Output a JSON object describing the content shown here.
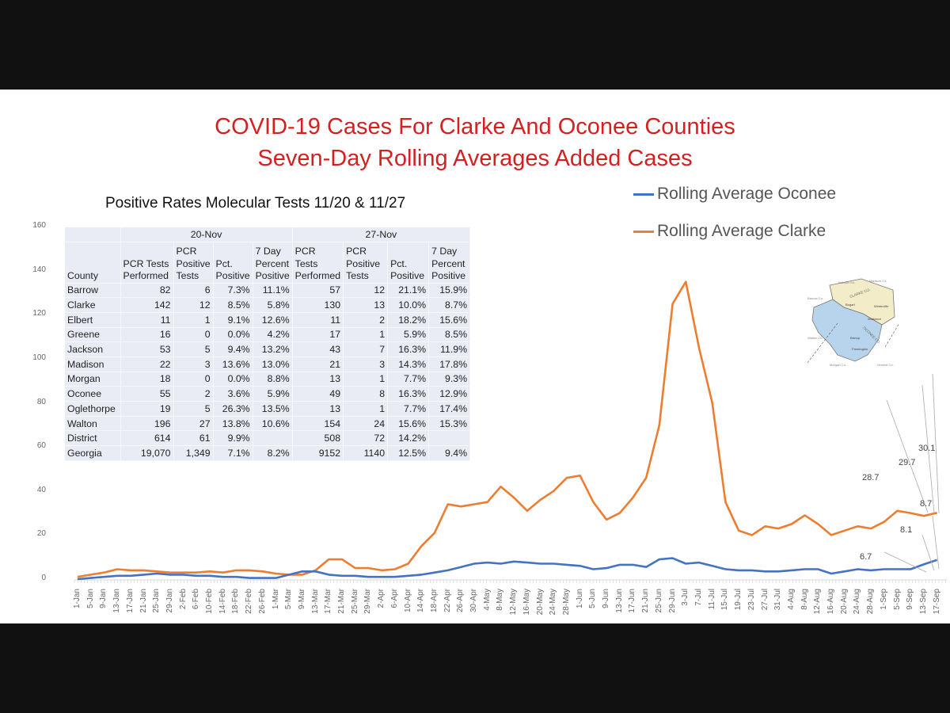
{
  "slide": {
    "title_line1": "COVID-19 Cases For Clarke And Oconee Counties",
    "title_line2": "Seven-Day Rolling Averages Added Cases",
    "table_title": "Positive Rates Molecular Tests 11/20 & 11/27"
  },
  "legend": [
    {
      "label": "Rolling Average Oconee",
      "color": "#4472c4"
    },
    {
      "label": "Rolling Average Clarke",
      "color": "#ed7d31"
    }
  ],
  "table": {
    "groups": [
      "20-Nov",
      "27-Nov"
    ],
    "headers": [
      "County",
      "PCR Tests Performed",
      "PCR Positive Tests",
      "Pct. Positive",
      "7 Day Percent Positive",
      "PCR Tests Performed",
      "PCR Positive Tests",
      "Pct. Positive",
      "7 Day Percent Positive"
    ],
    "rows": [
      [
        "Barrow",
        "82",
        "6",
        "7.3%",
        "11.1%",
        "57",
        "12",
        "21.1%",
        "15.9%"
      ],
      [
        "Clarke",
        "142",
        "12",
        "8.5%",
        "5.8%",
        "130",
        "13",
        "10.0%",
        "8.7%"
      ],
      [
        "Elbert",
        "11",
        "1",
        "9.1%",
        "12.6%",
        "11",
        "2",
        "18.2%",
        "15.6%"
      ],
      [
        "Greene",
        "16",
        "0",
        "0.0%",
        "4.2%",
        "17",
        "1",
        "5.9%",
        "8.5%"
      ],
      [
        "Jackson",
        "53",
        "5",
        "9.4%",
        "13.2%",
        "43",
        "7",
        "16.3%",
        "11.9%"
      ],
      [
        "Madison",
        "22",
        "3",
        "13.6%",
        "13.0%",
        "21",
        "3",
        "14.3%",
        "17.8%"
      ],
      [
        "Morgan",
        "18",
        "0",
        "0.0%",
        "8.8%",
        "13",
        "1",
        "7.7%",
        "9.3%"
      ],
      [
        "Oconee",
        "55",
        "2",
        "3.6%",
        "5.9%",
        "49",
        "8",
        "16.3%",
        "12.9%"
      ],
      [
        "Oglethorpe",
        "19",
        "5",
        "26.3%",
        "13.5%",
        "13",
        "1",
        "7.7%",
        "17.4%"
      ],
      [
        "Walton",
        "196",
        "27",
        "13.8%",
        "10.6%",
        "154",
        "24",
        "15.6%",
        "15.3%"
      ],
      [
        "District",
        "614",
        "61",
        "9.9%",
        "",
        "508",
        "72",
        "14.2%",
        ""
      ],
      [
        "Georgia",
        "19,070",
        "1,349",
        "7.1%",
        "8.2%",
        "9152",
        "1140",
        "12.5%",
        "9.4%"
      ]
    ]
  },
  "map": {
    "labels": [
      "Jackson Co.",
      "Madison Co.",
      "Barrow Co.",
      "Clarke Co.",
      "Oconee Co.",
      "Bogart",
      "Winterville",
      "Watkinsville",
      "Bishop",
      "Farmington",
      "Walton Co.",
      "Morgan Co.",
      "Greene Co.",
      "Oglethorpe Co."
    ]
  },
  "chart_data": {
    "type": "line",
    "title": "COVID-19 Cases For Clarke And Oconee Counties - Seven-Day Rolling Averages Added Cases",
    "xlabel": "",
    "ylabel": "",
    "ylim": [
      0,
      160
    ],
    "yticks": [
      0,
      20,
      40,
      60,
      80,
      100,
      120,
      140,
      160
    ],
    "grid": false,
    "legend_position": "top-right",
    "categories": [
      "1-Jan",
      "5-Jan",
      "9-Jan",
      "13-Jan",
      "17-Jan",
      "21-Jan",
      "25-Jan",
      "29-Jan",
      "2-Feb",
      "6-Feb",
      "10-Feb",
      "14-Feb",
      "18-Feb",
      "22-Feb",
      "26-Feb",
      "1-Mar",
      "5-Mar",
      "9-Mar",
      "13-Mar",
      "17-Mar",
      "21-Mar",
      "25-Mar",
      "29-Mar",
      "2-Apr",
      "6-Apr",
      "10-Apr",
      "14-Apr",
      "18-Apr",
      "22-Apr",
      "26-Apr",
      "30-Apr",
      "4-May",
      "8-May",
      "12-May",
      "16-May",
      "20-May",
      "24-May",
      "28-May",
      "1-Jun",
      "5-Jun",
      "9-Jun",
      "13-Jun",
      "17-Jun",
      "21-Jun",
      "25-Jun",
      "29-Jun",
      "3-Jul",
      "7-Jul",
      "11-Jul",
      "15-Jul",
      "19-Jul",
      "23-Jul",
      "27-Jul",
      "31-Jul",
      "4-Aug",
      "8-Aug",
      "12-Aug",
      "16-Aug",
      "20-Aug",
      "24-Aug",
      "28-Aug",
      "1-Sep",
      "5-Sep",
      "9-Sep",
      "13-Sep",
      "17-Sep"
    ],
    "series": [
      {
        "name": "Rolling Average Oconee",
        "color": "#4472c4",
        "values": [
          0,
          0.5,
          1,
          1.5,
          1.5,
          2,
          2.5,
          2,
          2,
          1.5,
          1.5,
          1,
          1,
          0.5,
          0.5,
          0.5,
          2,
          3.5,
          3.5,
          2,
          1.5,
          1.5,
          1,
          1,
          1,
          1.5,
          2,
          3,
          4,
          5.5,
          7,
          7.5,
          7,
          8,
          7.5,
          7,
          7,
          6.5,
          6,
          4.5,
          5,
          6.5,
          6.5,
          5.5,
          9,
          9.5,
          7,
          7.5,
          6,
          4.5,
          4,
          4,
          3.5,
          3.5,
          4,
          4.5,
          4.5,
          2.5,
          3.5,
          4.5,
          4,
          4.5,
          4.5,
          4.5,
          6.7,
          8.7
        ]
      },
      {
        "name": "Rolling Average Clarke",
        "color": "#ed7d31",
        "values": [
          1,
          2,
          3,
          4.5,
          4,
          4,
          3.5,
          3,
          3,
          3,
          3.5,
          3,
          4,
          4,
          3.5,
          2.5,
          2,
          2,
          4,
          9,
          9,
          5,
          5,
          4,
          4.5,
          7,
          15,
          21,
          34,
          33,
          34,
          35,
          42,
          37,
          31,
          36,
          40,
          46,
          47,
          35,
          27,
          30,
          37,
          46,
          70,
          125,
          135,
          105,
          80,
          35,
          22,
          20,
          24,
          23,
          25,
          29,
          25,
          20,
          22,
          24,
          23,
          26,
          31,
          30,
          28.7,
          30.1
        ]
      }
    ],
    "annotations": {
      "Rolling Average Clarke": [
        "28.7",
        "29.7",
        "30.1"
      ],
      "Rolling Average Oconee": [
        "6.7",
        "8.1",
        "8.7"
      ]
    }
  }
}
